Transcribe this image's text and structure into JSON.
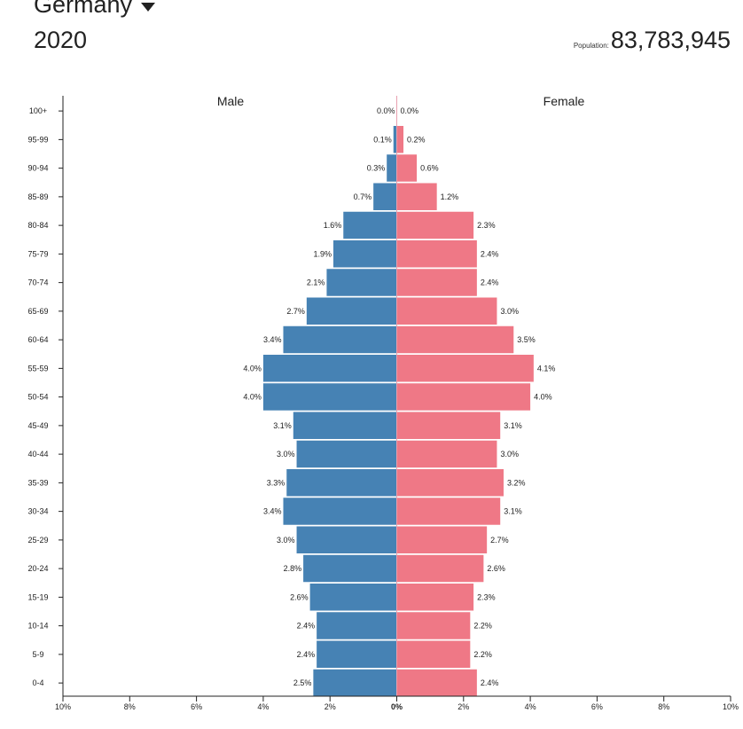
{
  "header": {
    "country": "Germany",
    "year": "2020",
    "population_label": "Population:",
    "population_value": "83,783,945"
  },
  "colors": {
    "male": "#4682b4",
    "female": "#ef7886"
  },
  "chart_data": {
    "type": "bar",
    "orientation": "horizontal-diverging",
    "title": "",
    "xlabel": "",
    "ylabel": "",
    "xlim": [
      -10,
      10
    ],
    "x_ticks": [
      "10%",
      "8%",
      "6%",
      "4%",
      "2%",
      "0%",
      "2%",
      "4%",
      "6%",
      "8%",
      "10%"
    ],
    "categories": [
      "100+",
      "95-99",
      "90-94",
      "85-89",
      "80-84",
      "75-79",
      "70-74",
      "65-69",
      "60-64",
      "55-59",
      "50-54",
      "45-49",
      "40-44",
      "35-39",
      "30-34",
      "25-29",
      "20-24",
      "15-19",
      "10-14",
      "5-9",
      "0-4"
    ],
    "series": [
      {
        "name": "Male",
        "values": [
          0.0,
          0.1,
          0.3,
          0.7,
          1.6,
          1.9,
          2.1,
          2.7,
          3.4,
          4.0,
          4.0,
          3.1,
          3.0,
          3.3,
          3.4,
          3.0,
          2.8,
          2.6,
          2.4,
          2.4,
          2.5
        ],
        "labels": [
          "0.0%",
          "0.1%",
          "0.3%",
          "0.7%",
          "1.6%",
          "1.9%",
          "2.1%",
          "2.7%",
          "3.4%",
          "4.0%",
          "4.0%",
          "3.1%",
          "3.0%",
          "3.3%",
          "3.4%",
          "3.0%",
          "2.8%",
          "2.6%",
          "2.4%",
          "2.4%",
          "2.5%"
        ]
      },
      {
        "name": "Female",
        "values": [
          0.0,
          0.2,
          0.6,
          1.2,
          2.3,
          2.4,
          2.4,
          3.0,
          3.5,
          4.1,
          4.0,
          3.1,
          3.0,
          3.2,
          3.1,
          2.7,
          2.6,
          2.3,
          2.2,
          2.2,
          2.4
        ],
        "labels": [
          "0.0%",
          "0.2%",
          "0.6%",
          "1.2%",
          "2.3%",
          "2.4%",
          "2.4%",
          "3.0%",
          "3.5%",
          "4.1%",
          "4.0%",
          "3.1%",
          "3.0%",
          "3.2%",
          "3.1%",
          "2.7%",
          "2.6%",
          "2.3%",
          "2.2%",
          "2.2%",
          "2.4%"
        ]
      }
    ],
    "grid": false,
    "legend": "top"
  }
}
